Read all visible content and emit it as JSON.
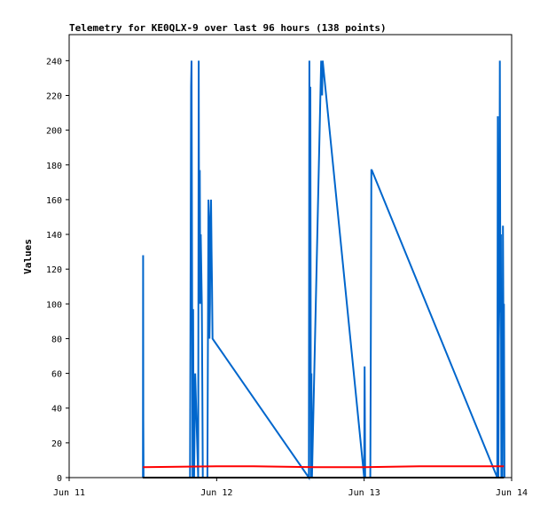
{
  "chart_data": {
    "type": "line",
    "title": "Telemetry for KE0QLX-9 over last 96 hours (138 points)",
    "ylabel": "Values",
    "xlabel": "",
    "xlim": [
      "2021-06-11",
      "2021-06-14"
    ],
    "ylim": [
      0,
      255
    ],
    "x_ticks": [
      "Jun 11",
      "Jun 12",
      "Jun 13",
      "Jun 14"
    ],
    "y_ticks": [
      0,
      20,
      40,
      60,
      80,
      100,
      120,
      140,
      160,
      180,
      200,
      220,
      240
    ],
    "grid": false,
    "legend": "none",
    "colors": {
      "blue": "#0066cc",
      "red": "#ff0000",
      "black": "#000000"
    },
    "series": [
      {
        "color": "#0066cc",
        "x": [
          "2021-06-11T12:00",
          "2021-06-11T12:02",
          "2021-06-11T12:04",
          "2021-06-11T12:06",
          "2021-06-11T19:40",
          "2021-06-11T19:45",
          "2021-06-11T19:50",
          "2021-06-11T19:55",
          "2021-06-11T20:00",
          "2021-06-11T20:05",
          "2021-06-11T20:10",
          "2021-06-11T20:15",
          "2021-06-11T20:20",
          "2021-06-11T20:30",
          "2021-06-11T21:00",
          "2021-06-11T21:05",
          "2021-06-11T21:10",
          "2021-06-11T21:15",
          "2021-06-11T21:20",
          "2021-06-11T21:25",
          "2021-06-11T21:30",
          "2021-06-11T21:35",
          "2021-06-11T21:40",
          "2021-06-11T21:45",
          "2021-06-11T22:30",
          "2021-06-11T22:35",
          "2021-06-11T22:40",
          "2021-06-11T22:45",
          "2021-06-11T22:50",
          "2021-06-11T22:55",
          "2021-06-11T23:00",
          "2021-06-11T23:05",
          "2021-06-11T23:10",
          "2021-06-11T23:15",
          "2021-06-11T23:20",
          "2021-06-12T15:00",
          "2021-06-12T15:05",
          "2021-06-12T15:10",
          "2021-06-12T15:15",
          "2021-06-12T15:20",
          "2021-06-12T15:25",
          "2021-06-12T15:30",
          "2021-06-12T17:00",
          "2021-06-12T17:05",
          "2021-06-12T17:10",
          "2021-06-12T17:15",
          "2021-06-13T00:00",
          "2021-06-13T00:05",
          "2021-06-13T00:10",
          "2021-06-13T00:15",
          "2021-06-13T01:00",
          "2021-06-13T01:05",
          "2021-06-13T01:10",
          "2021-06-13T01:15",
          "2021-06-13T21:40",
          "2021-06-13T21:45",
          "2021-06-13T21:50",
          "2021-06-13T21:55",
          "2021-06-13T22:00",
          "2021-06-13T22:05",
          "2021-06-13T22:10",
          "2021-06-13T22:15",
          "2021-06-13T22:20",
          "2021-06-13T22:30",
          "2021-06-13T22:35",
          "2021-06-13T22:40",
          "2021-06-13T22:45",
          "2021-06-13T22:50"
        ],
        "y": [
          0,
          128,
          33,
          0,
          0,
          110,
          225,
          240,
          120,
          0,
          97,
          10,
          0,
          60,
          0,
          240,
          100,
          177,
          100,
          140,
          120,
          100,
          50,
          0,
          0,
          80,
          160,
          140,
          80,
          100,
          150,
          160,
          130,
          110,
          80,
          0,
          240,
          100,
          225,
          0,
          60,
          0,
          240,
          236,
          220,
          240,
          0,
          64,
          0,
          0,
          0,
          80,
          177,
          177,
          0,
          208,
          0,
          80,
          100,
          240,
          95,
          140,
          0,
          0,
          145,
          80,
          100,
          0
        ]
      },
      {
        "color": "#ff0000",
        "x": [
          "2021-06-11T12:00",
          "2021-06-12T00:00",
          "2021-06-12T06:00",
          "2021-06-12T16:00",
          "2021-06-13T00:00",
          "2021-06-13T09:00",
          "2021-06-13T22:45"
        ],
        "y": [
          6,
          6.5,
          6.5,
          6,
          6,
          6.5,
          6.5
        ]
      },
      {
        "color": "#000000",
        "x": [
          "2021-06-11T12:00",
          "2021-06-13T22:45"
        ],
        "y": [
          0,
          0
        ]
      }
    ]
  }
}
